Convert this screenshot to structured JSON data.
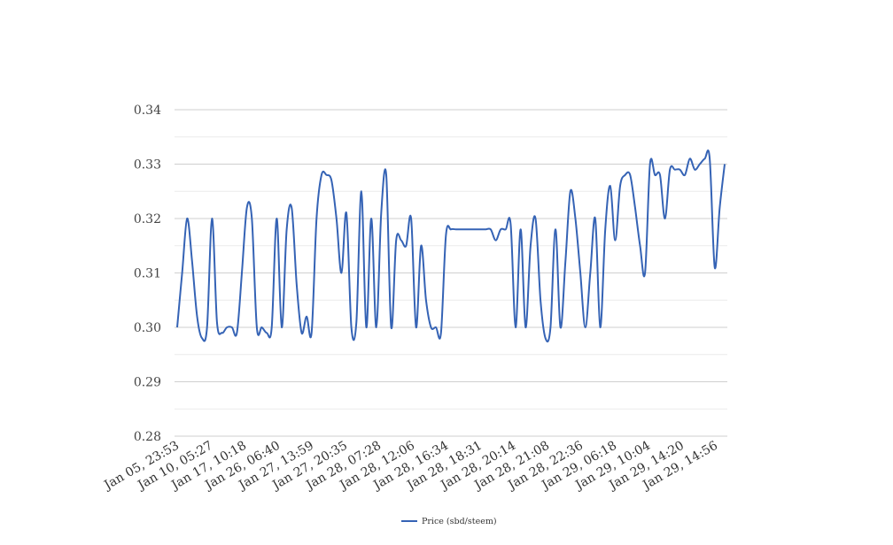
{
  "chart_data": {
    "type": "line",
    "title": "",
    "xlabel": "",
    "ylabel": "",
    "ylim": [
      0.28,
      0.34
    ],
    "y_ticks": [
      "0.28",
      "0.29",
      "0.30",
      "0.31",
      "0.32",
      "0.33",
      "0.34"
    ],
    "grid": true,
    "legend_position": "bottom-center",
    "x_tick_labels": [
      "Jan 05, 23:53",
      "Jan 10, 05:27",
      "Jan 17, 10:18",
      "Jan 26, 06:40",
      "Jan 27, 13:59",
      "Jan 27, 20:35",
      "Jan 28, 07:28",
      "Jan 28, 12:06",
      "Jan 28, 16:34",
      "Jan 28, 18:31",
      "Jan 28, 20:14",
      "Jan 28, 21:08",
      "Jan 28, 22:36",
      "Jan 29, 06:18",
      "Jan 29, 10:04",
      "Jan 29, 14:20",
      "Jan 29, 14:56"
    ],
    "series": [
      {
        "name": "Price (sbd/steem)",
        "color": "#3563b5",
        "values": [
          0.3,
          0.31,
          0.32,
          0.312,
          0.302,
          0.298,
          0.3,
          0.32,
          0.301,
          0.299,
          0.3,
          0.3,
          0.299,
          0.31,
          0.322,
          0.32,
          0.3,
          0.3,
          0.299,
          0.3,
          0.32,
          0.3,
          0.318,
          0.322,
          0.308,
          0.299,
          0.302,
          0.299,
          0.32,
          0.328,
          0.328,
          0.327,
          0.32,
          0.31,
          0.321,
          0.3,
          0.301,
          0.325,
          0.3,
          0.32,
          0.3,
          0.321,
          0.328,
          0.3,
          0.316,
          0.316,
          0.315,
          0.32,
          0.3,
          0.315,
          0.305,
          0.3,
          0.3,
          0.299,
          0.317,
          0.318,
          0.318,
          0.318,
          0.318,
          0.318,
          0.318,
          0.318,
          0.318,
          0.318,
          0.316,
          0.318,
          0.318,
          0.319,
          0.3,
          0.318,
          0.3,
          0.315,
          0.32,
          0.305,
          0.298,
          0.3,
          0.318,
          0.3,
          0.312,
          0.325,
          0.32,
          0.31,
          0.3,
          0.31,
          0.32,
          0.3,
          0.318,
          0.326,
          0.316,
          0.326,
          0.328,
          0.328,
          0.322,
          0.315,
          0.31,
          0.33,
          0.328,
          0.328,
          0.32,
          0.329,
          0.329,
          0.329,
          0.328,
          0.331,
          0.329,
          0.33,
          0.331,
          0.331,
          0.311,
          0.322,
          0.33
        ]
      }
    ]
  }
}
